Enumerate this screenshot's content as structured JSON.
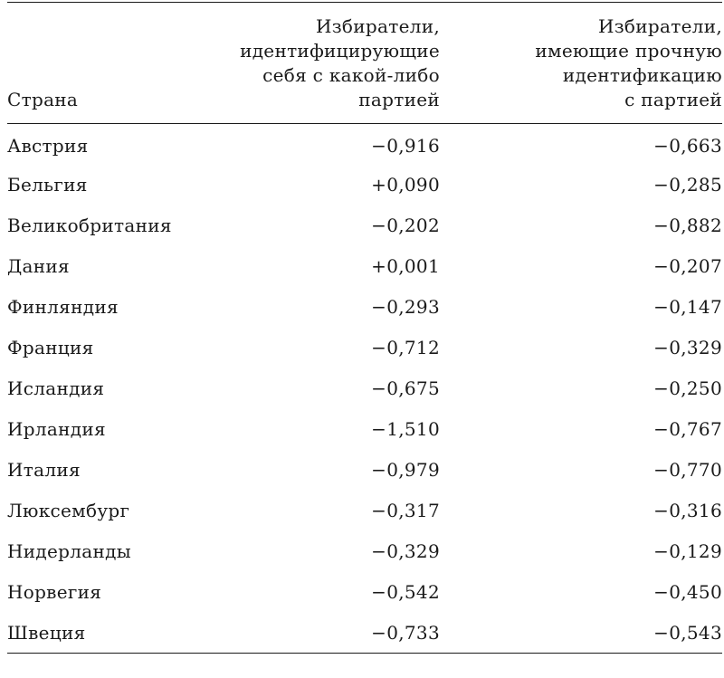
{
  "table": {
    "headers": {
      "country": "Страна",
      "col1": "Избиратели,\nидентифицирующие\nсебя с какой-либо\nпартией",
      "col2": "Избиратели,\nимеющие прочную\nидентификацию\nс партией"
    },
    "rows": [
      {
        "country": "Австрия",
        "col1": "−0,916",
        "col2": "−0,663"
      },
      {
        "country": "Бельгия",
        "col1": "+0,090",
        "col2": "−0,285"
      },
      {
        "country": "Великобритания",
        "col1": "−0,202",
        "col2": "−0,882"
      },
      {
        "country": "Дания",
        "col1": "+0,001",
        "col2": "−0,207"
      },
      {
        "country": "Финляндия",
        "col1": "−0,293",
        "col2": "−0,147"
      },
      {
        "country": "Франция",
        "col1": "−0,712",
        "col2": "−0,329"
      },
      {
        "country": "Исландия",
        "col1": "−0,675",
        "col2": "−0,250"
      },
      {
        "country": "Ирландия",
        "col1": "−1,510",
        "col2": "−0,767"
      },
      {
        "country": "Италия",
        "col1": "−0,979",
        "col2": "−0,770"
      },
      {
        "country": "Люксембург",
        "col1": "−0,317",
        "col2": "−0,316"
      },
      {
        "country": "Нидерланды",
        "col1": "−0,329",
        "col2": "−0,129"
      },
      {
        "country": "Норвегия",
        "col1": "−0,542",
        "col2": "−0,450"
      },
      {
        "country": "Швеция",
        "col1": "−0,733",
        "col2": "−0,543"
      }
    ]
  }
}
